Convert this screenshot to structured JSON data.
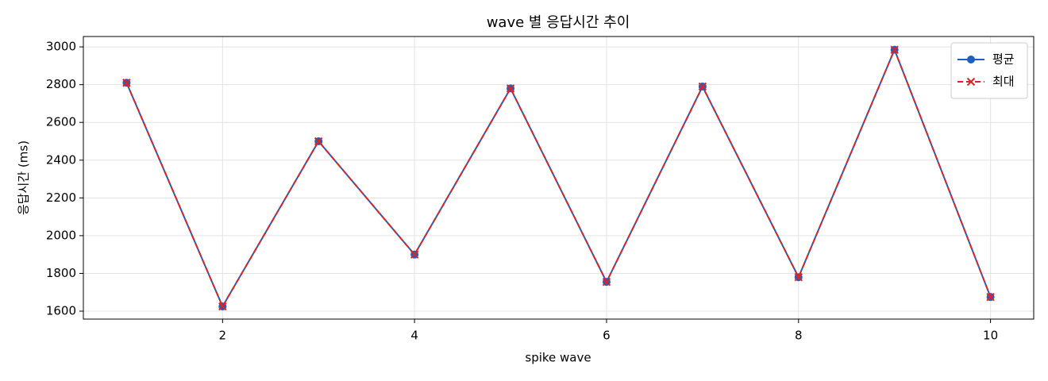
{
  "chart_data": {
    "type": "line",
    "title": "wave 별 응답시간 추이",
    "xlabel": "spike wave",
    "ylabel": "응답시간 (ms)",
    "x": [
      1,
      2,
      3,
      4,
      5,
      6,
      7,
      8,
      9,
      10
    ],
    "series": [
      {
        "name": "평균",
        "color": "#1f5fbf",
        "marker": "o",
        "linestyle": "solid",
        "values": [
          2810,
          1625,
          2500,
          1900,
          2780,
          1755,
          2790,
          1780,
          2985,
          1675
        ]
      },
      {
        "name": "최대",
        "color": "#d62728",
        "marker": "x",
        "linestyle": "dashed",
        "values": [
          2810,
          1625,
          2500,
          1900,
          2780,
          1755,
          2790,
          1780,
          2985,
          1675
        ]
      }
    ],
    "xlim": [
      0.55,
      10.45
    ],
    "xticks": [
      2,
      4,
      6,
      8,
      10
    ],
    "ylim": [
      1558,
      3055
    ],
    "yticks": [
      1600,
      1800,
      2000,
      2200,
      2400,
      2600,
      2800,
      3000
    ],
    "grid": true,
    "legend": "upper right"
  }
}
